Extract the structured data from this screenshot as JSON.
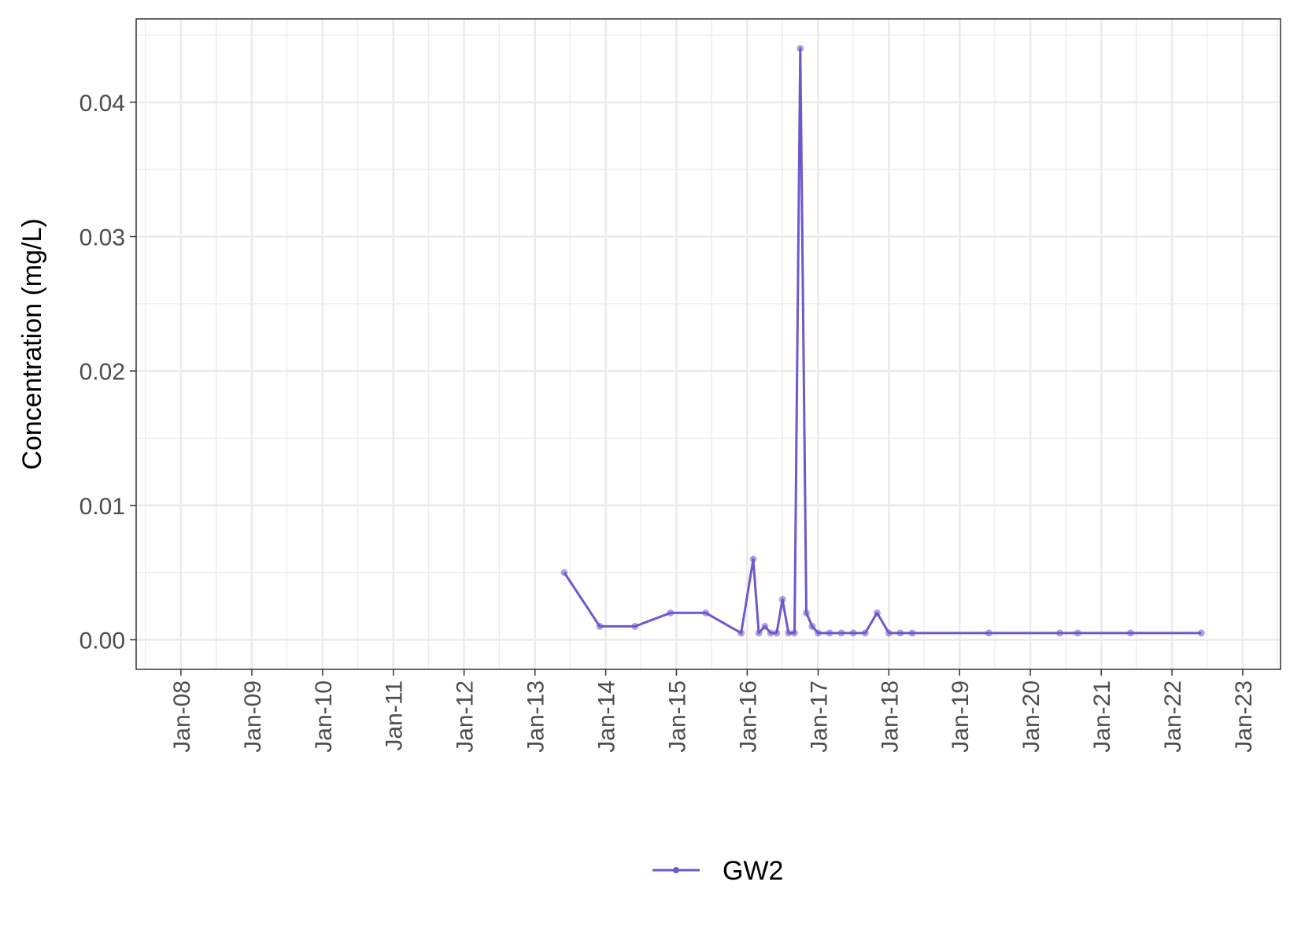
{
  "chart_data": {
    "type": "line",
    "xlabel": "",
    "ylabel": "Concentration (mg/L)",
    "x_ticks": [
      "Jan-08",
      "Jan-09",
      "Jan-10",
      "Jan-11",
      "Jan-12",
      "Jan-13",
      "Jan-14",
      "Jan-15",
      "Jan-16",
      "Jan-17",
      "Jan-18",
      "Jan-19",
      "Jan-20",
      "Jan-21",
      "Jan-22",
      "Jan-23"
    ],
    "y_ticks": [
      "0.00",
      "0.01",
      "0.02",
      "0.03",
      "0.04"
    ],
    "xlim": [
      "2007-05-15",
      "2023-07-15"
    ],
    "ylim": [
      -0.0022,
      0.0462
    ],
    "grid": true,
    "legend_position": "bottom",
    "series": [
      {
        "name": "GW2",
        "color": "#6a5acd",
        "points": [
          {
            "x": "2013-06-01",
            "y": 0.005
          },
          {
            "x": "2013-12-01",
            "y": 0.001
          },
          {
            "x": "2014-06-01",
            "y": 0.001
          },
          {
            "x": "2014-12-01",
            "y": 0.002
          },
          {
            "x": "2015-06-01",
            "y": 0.002
          },
          {
            "x": "2015-12-01",
            "y": 0.0005
          },
          {
            "x": "2016-02-01",
            "y": 0.006
          },
          {
            "x": "2016-03-01",
            "y": 0.0005
          },
          {
            "x": "2016-04-01",
            "y": 0.001
          },
          {
            "x": "2016-05-01",
            "y": 0.0005
          },
          {
            "x": "2016-06-01",
            "y": 0.0005
          },
          {
            "x": "2016-07-01",
            "y": 0.003
          },
          {
            "x": "2016-08-01",
            "y": 0.0005
          },
          {
            "x": "2016-09-01",
            "y": 0.0005
          },
          {
            "x": "2016-10-01",
            "y": 0.044
          },
          {
            "x": "2016-11-01",
            "y": 0.002
          },
          {
            "x": "2016-12-01",
            "y": 0.001
          },
          {
            "x": "2017-01-01",
            "y": 0.0005
          },
          {
            "x": "2017-03-01",
            "y": 0.0005
          },
          {
            "x": "2017-05-01",
            "y": 0.0005
          },
          {
            "x": "2017-07-01",
            "y": 0.0005
          },
          {
            "x": "2017-09-01",
            "y": 0.0005
          },
          {
            "x": "2017-11-01",
            "y": 0.002
          },
          {
            "x": "2018-01-01",
            "y": 0.0005
          },
          {
            "x": "2018-03-01",
            "y": 0.0005
          },
          {
            "x": "2018-05-01",
            "y": 0.0005
          },
          {
            "x": "2019-06-01",
            "y": 0.0005
          },
          {
            "x": "2020-06-01",
            "y": 0.0005
          },
          {
            "x": "2020-09-01",
            "y": 0.0005
          },
          {
            "x": "2021-06-01",
            "y": 0.0005
          },
          {
            "x": "2022-06-01",
            "y": 0.0005
          }
        ]
      }
    ]
  }
}
